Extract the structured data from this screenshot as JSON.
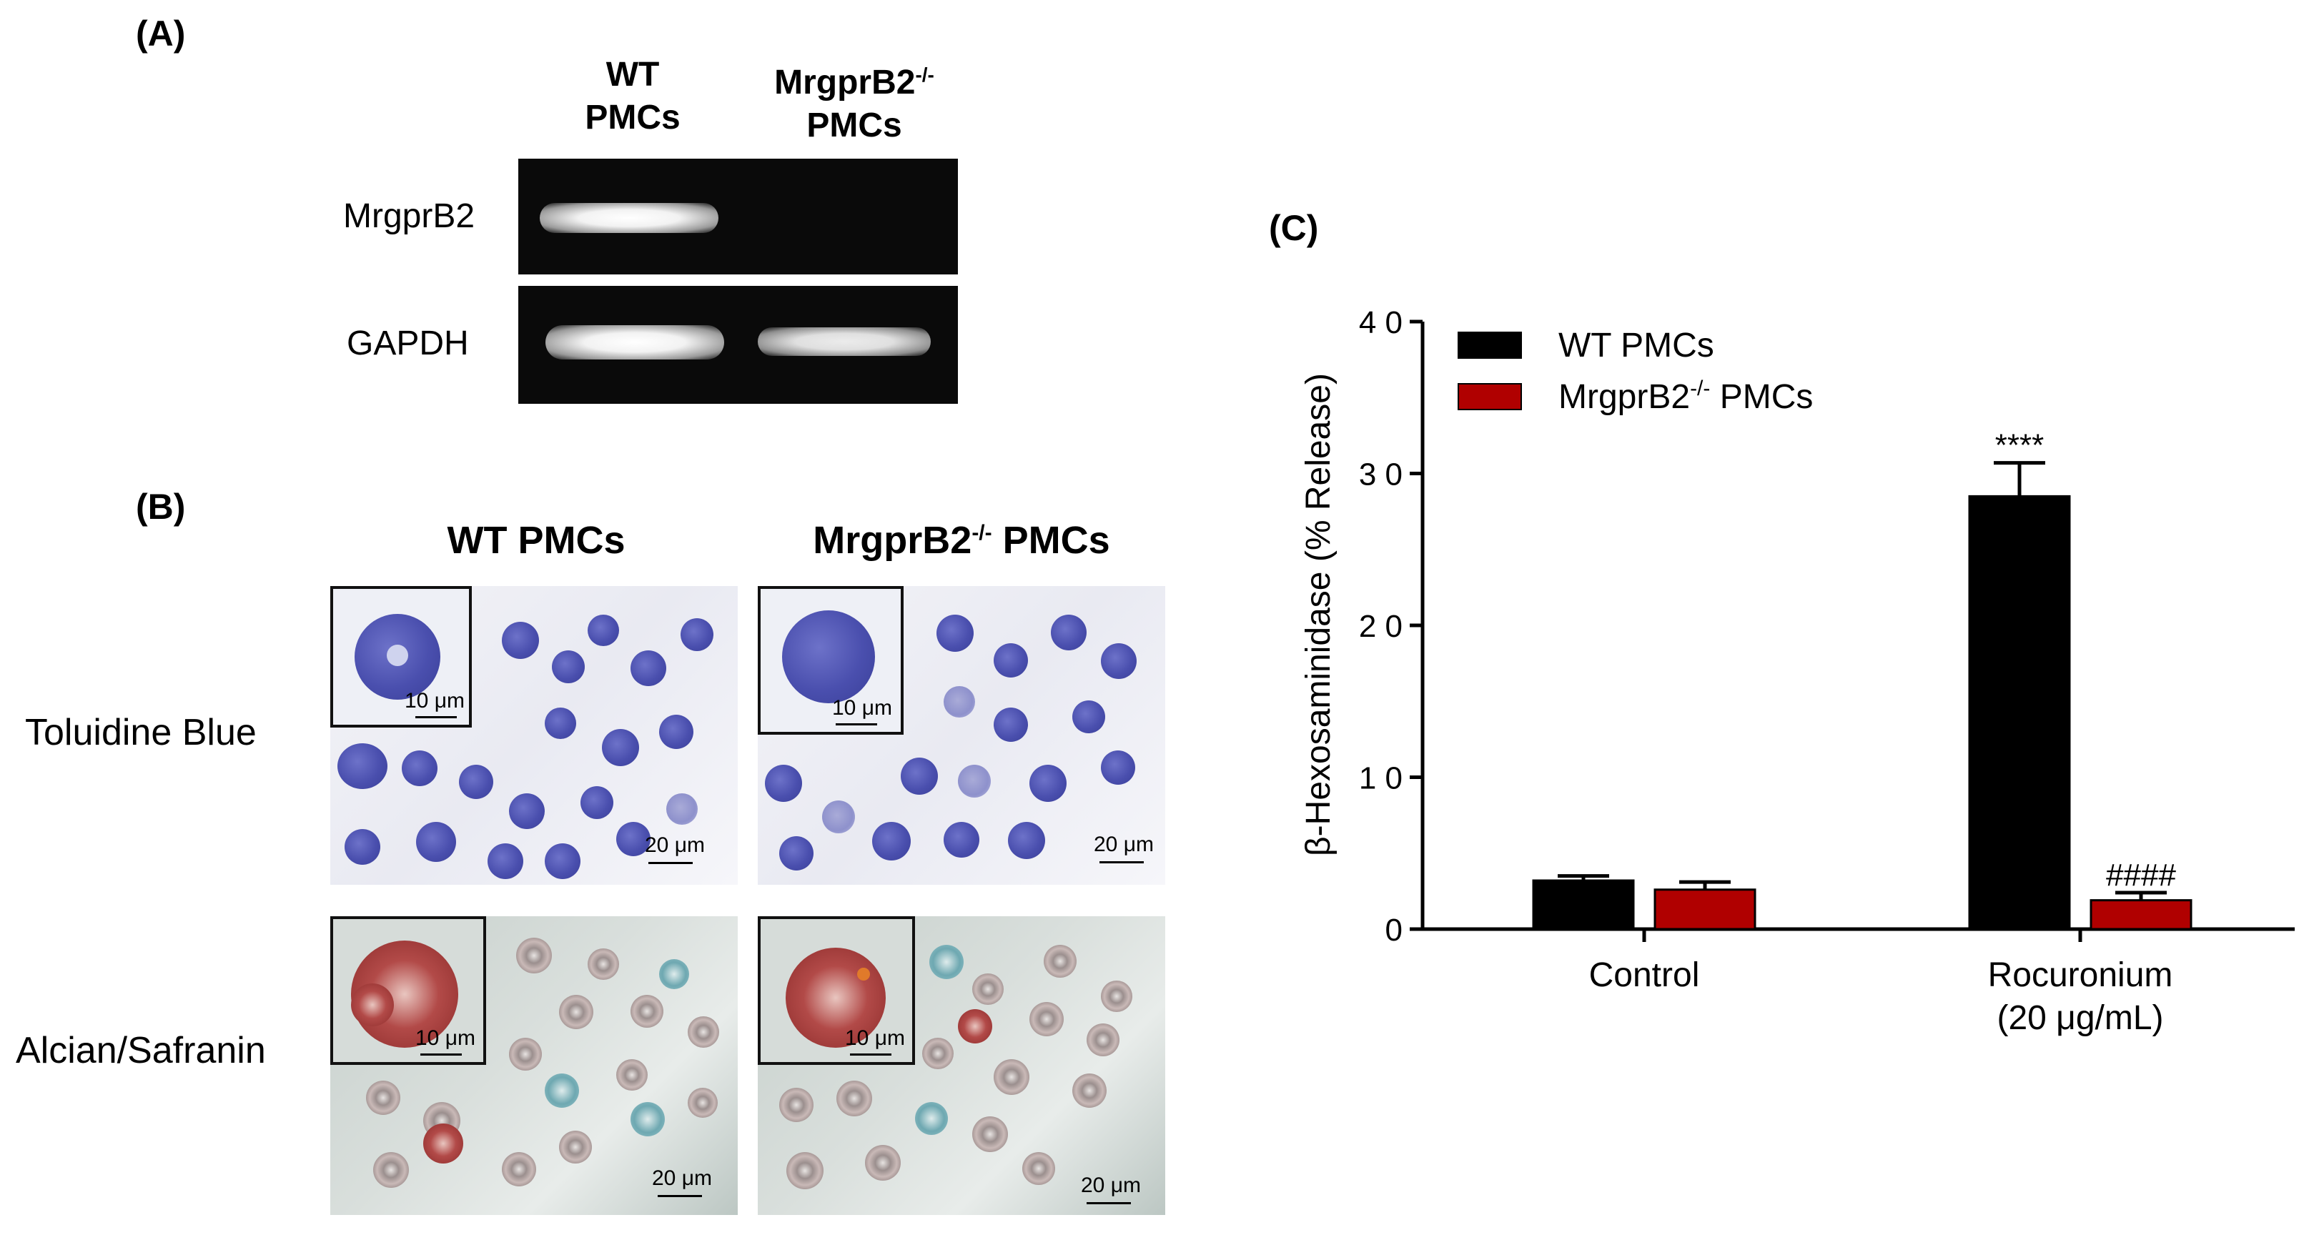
{
  "panel_a": {
    "label": "(A)",
    "col1": [
      "WT",
      "PMCs"
    ],
    "col2_main": "MrgprB2",
    "col2_sup": "-/-",
    "col2_line2": "PMCs",
    "row1": "MrgprB2",
    "row2": "GAPDH",
    "bands": {
      "mrgprb2": {
        "wt": 1,
        "ko": 0
      },
      "gapdh": {
        "wt": 1,
        "ko": 0.85
      }
    }
  },
  "panel_b": {
    "label": "(B)",
    "col1": "WT PMCs",
    "col2_main": "MrgprB2",
    "col2_sup": "-/-",
    "col2_suffix": " PMCs",
    "row1": "Toluidine Blue",
    "row2": "Alcian/Safranin",
    "scale_inset": "10 μm",
    "scale_main": "20 μm"
  },
  "panel_c": {
    "label": "(C)"
  },
  "chart_data": {
    "type": "bar",
    "ylabel": "β-Hexosaminidase (% Release)",
    "ylim": [
      0,
      40
    ],
    "yticks": [
      0,
      10,
      20,
      30,
      40
    ],
    "categories": [
      {
        "lines": [
          "Control"
        ]
      },
      {
        "lines": [
          "Rocuronium",
          "(20 μg/mL)"
        ]
      }
    ],
    "series": [
      {
        "legend_main": "WT PMCs",
        "legend_sup": "",
        "legend_suffix": "",
        "color": "#000000",
        "values": [
          3.2,
          28.5
        ],
        "errors": [
          0.3,
          2.2
        ],
        "annotations": [
          "",
          "****"
        ]
      },
      {
        "legend_main": "MrgprB2",
        "legend_sup": "-/-",
        "legend_suffix": " PMCs",
        "color": "#b00000",
        "values": [
          2.6,
          1.9
        ],
        "errors": [
          0.5,
          0.5
        ],
        "annotations": [
          "",
          "####"
        ]
      }
    ],
    "legend_position": "top-left",
    "grid": false
  }
}
